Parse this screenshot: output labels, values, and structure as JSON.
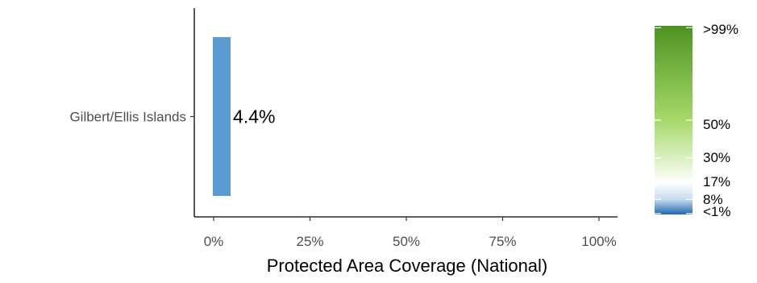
{
  "chart_data": {
    "type": "bar",
    "orientation": "horizontal",
    "categories": [
      "Gilbert/Ellis Islands"
    ],
    "values": [
      4.4
    ],
    "value_labels": [
      "4.4%"
    ],
    "bar_color": "#5b9bd1",
    "xlabel": "Protected Area Coverage (National)",
    "ylabel": "",
    "xlim": [
      0,
      100
    ],
    "xticks": [
      0,
      25,
      50,
      75,
      100
    ],
    "xtick_labels": [
      "0%",
      "25%",
      "50%",
      "75%",
      "100%"
    ],
    "grid": false,
    "legend": {
      "placement": "right",
      "type": "colorbar",
      "colors": [
        {
          "stop": 0,
          "color": "#2166ac"
        },
        {
          "stop": 8,
          "color": "#c6dbef"
        },
        {
          "stop": 17,
          "color": "#ffffff"
        },
        {
          "stop": 30,
          "color": "#d9f0c0"
        },
        {
          "stop": 50,
          "color": "#a6d96a"
        },
        {
          "stop": 100,
          "color": "#4d9221"
        }
      ],
      "breaks": [
        {
          "value": 0.5,
          "label": "<1%"
        },
        {
          "value": 8,
          "label": "8%"
        },
        {
          "value": 17,
          "label": "17%"
        },
        {
          "value": 30,
          "label": "30%"
        },
        {
          "value": 50,
          "label": "50%"
        },
        {
          "value": 99,
          "label": ">99%"
        }
      ]
    }
  }
}
